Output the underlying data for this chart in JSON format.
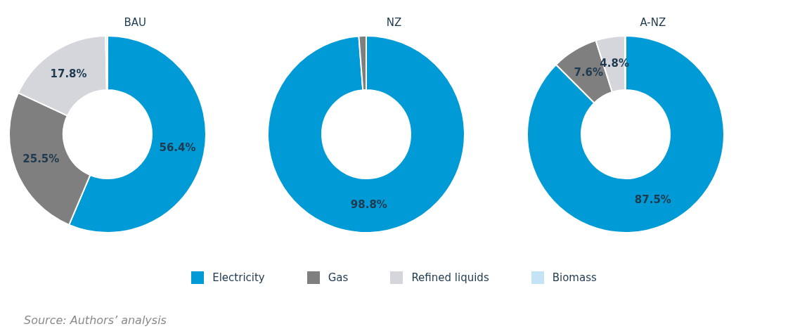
{
  "chart_data": [
    {
      "type": "donut",
      "title": "BAU",
      "categories": [
        "Electricity",
        "Gas",
        "Refined liquids",
        "Biomass"
      ],
      "values": [
        56.4,
        25.5,
        17.8,
        0.3
      ],
      "colors": [
        "#009bd6",
        "#7f7f7f",
        "#d5d6db",
        "#c4e4f5"
      ],
      "value_labels": [
        "56.4%",
        "25.5%",
        "17.8%",
        null
      ],
      "legend": "bottom",
      "annotations": [
        "Source: Authors’ analysis"
      ]
    },
    {
      "type": "donut",
      "title": "NZ",
      "categories": [
        null,
        null,
        null,
        null
      ],
      "values": [
        98.8,
        1.2,
        null,
        null
      ],
      "colors": [
        "#009bd6",
        "#7f7f7f",
        "#d5d6db",
        "#c4e4f5"
      ],
      "value_labels": [
        "98.8%",
        null,
        null,
        null
      ]
    },
    {
      "type": "donut",
      "title": "A-NZ",
      "categories": [
        null,
        null,
        null,
        null
      ],
      "values": [
        87.5,
        7.6,
        4.8,
        0.1
      ],
      "colors": [
        "#009bd6",
        "#7f7f7f",
        "#d5d6db",
        "#c4e4f5"
      ],
      "value_labels": [
        "87.5%",
        "7.6%",
        "4.8%",
        null
      ]
    }
  ]
}
